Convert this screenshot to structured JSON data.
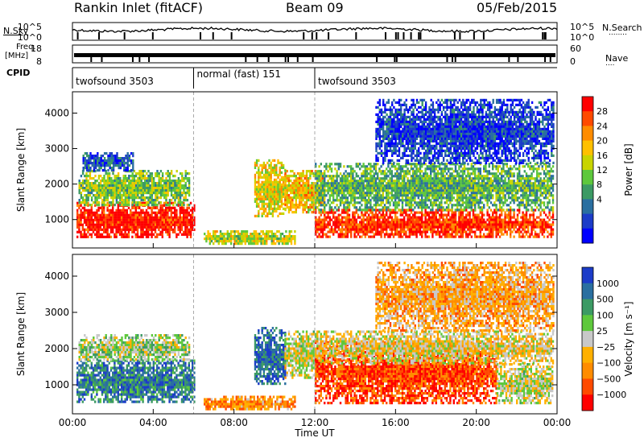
{
  "header": {
    "site": "Rankin Inlet (fitACF)",
    "beam": "Beam 09",
    "date": "05/Feb/2015"
  },
  "left_labels": {
    "nsky": "N.Sky",
    "freq_line1": "Freq.",
    "freq_line2": "[MHz]",
    "cpid": "CPID"
  },
  "right_labels": {
    "nsearch": "N.Search",
    "nave": "Nave",
    "dots": "........",
    "dots_short": "...."
  },
  "noise_axis": {
    "left_ticks": [
      "10^5",
      "10^0"
    ],
    "right_ticks": [
      "10^5",
      "10^0"
    ]
  },
  "freq_axis": {
    "left_ticks": [
      "18",
      "8"
    ],
    "right_ticks": [
      "60",
      "0"
    ]
  },
  "cpid_segments": [
    {
      "label": "twofsound 3503",
      "start_h": 0,
      "end_h": 6
    },
    {
      "label": "normal (fast) 151",
      "start_h": 6,
      "end_h": 12
    },
    {
      "label": "twofsound 3503",
      "start_h": 12,
      "end_h": 24
    }
  ],
  "chart_data": [
    {
      "type": "heatmap",
      "name": "power",
      "xlabel": "Time UT",
      "ylabel": "Slant Range [km]",
      "xlim": [
        0,
        24
      ],
      "ylim": [
        200,
        4600
      ],
      "xticks": [
        "00:00",
        "04:00",
        "08:00",
        "12:00",
        "16:00",
        "20:00",
        "00:00"
      ],
      "yticks": [
        1000,
        2000,
        3000,
        4000
      ],
      "colorbar": {
        "label": "Power [dB]",
        "ticks": [
          "28",
          "24",
          "20",
          "16",
          "12",
          "8",
          "4"
        ],
        "colors": [
          "#ff0000",
          "#ff4a00",
          "#ff8c00",
          "#ffc000",
          "#c8d400",
          "#5ec83c",
          "#3c9a64",
          "#2a6fa0",
          "#1c3cc8",
          "#0000ff"
        ]
      },
      "blobs": [
        {
          "t0": 0.2,
          "t1": 6.0,
          "r0": 500,
          "r1": 1500,
          "v": 0.95
        },
        {
          "t0": 0.3,
          "t1": 5.8,
          "r0": 1400,
          "r1": 2400,
          "v": 0.45
        },
        {
          "t0": 0.5,
          "t1": 3.0,
          "r0": 2400,
          "r1": 2900,
          "v": 0.2
        },
        {
          "t0": 6.5,
          "t1": 11.0,
          "r0": 300,
          "r1": 700,
          "v": 0.55
        },
        {
          "t0": 9.0,
          "t1": 10.5,
          "r0": 1100,
          "r1": 2700,
          "v": 0.6
        },
        {
          "t0": 10.5,
          "t1": 12.5,
          "r0": 1200,
          "r1": 2400,
          "v": 0.65
        },
        {
          "t0": 12.0,
          "t1": 23.8,
          "r0": 500,
          "r1": 1300,
          "v": 0.9
        },
        {
          "t0": 12.0,
          "t1": 23.8,
          "r0": 1300,
          "r1": 2600,
          "v": 0.4
        },
        {
          "t0": 15.0,
          "t1": 23.8,
          "r0": 2600,
          "r1": 4400,
          "v": 0.15
        }
      ]
    },
    {
      "type": "heatmap",
      "name": "velocity",
      "xlabel": "Time UT",
      "ylabel": "Slant Range [km]",
      "xlim": [
        0,
        24
      ],
      "ylim": [
        200,
        4600
      ],
      "xticks": [
        "00:00",
        "04:00",
        "08:00",
        "12:00",
        "16:00",
        "20:00",
        "00:00"
      ],
      "yticks": [
        1000,
        2000,
        3000,
        4000
      ],
      "colorbar": {
        "label": "Velocity [m s⁻¹]",
        "ticks": [
          "1000",
          "500",
          "100",
          "25",
          "−25",
          "−100",
          "−500",
          "−1000"
        ],
        "colors": [
          "#1c3cc8",
          "#2a6fa0",
          "#3c9a64",
          "#5ec83c",
          "#c8c8c8",
          "#ffb000",
          "#ff8c00",
          "#ff4a00",
          "#ff0000"
        ]
      },
      "blobs": [
        {
          "t0": 0.2,
          "t1": 6.0,
          "r0": 500,
          "r1": 1700,
          "v": 0.8
        },
        {
          "t0": 0.3,
          "t1": 5.8,
          "r0": 1700,
          "r1": 2400,
          "v": 0.55
        },
        {
          "t0": 6.5,
          "t1": 11.0,
          "r0": 300,
          "r1": 700,
          "v": 0.3
        },
        {
          "t0": 9.0,
          "t1": 10.5,
          "r0": 1000,
          "r1": 2600,
          "v": 0.85
        },
        {
          "t0": 10.5,
          "t1": 12.5,
          "r0": 1200,
          "r1": 2500,
          "v": 0.5
        },
        {
          "t0": 12.0,
          "t1": 21.0,
          "r0": 500,
          "r1": 2200,
          "v": 0.15
        },
        {
          "t0": 21.0,
          "t1": 23.8,
          "r0": 500,
          "r1": 1600,
          "v": 0.5
        },
        {
          "t0": 12.0,
          "t1": 23.8,
          "r0": 1600,
          "r1": 2500,
          "v": 0.45
        },
        {
          "t0": 15.0,
          "t1": 23.8,
          "r0": 2500,
          "r1": 4400,
          "v": 0.35
        }
      ]
    }
  ]
}
